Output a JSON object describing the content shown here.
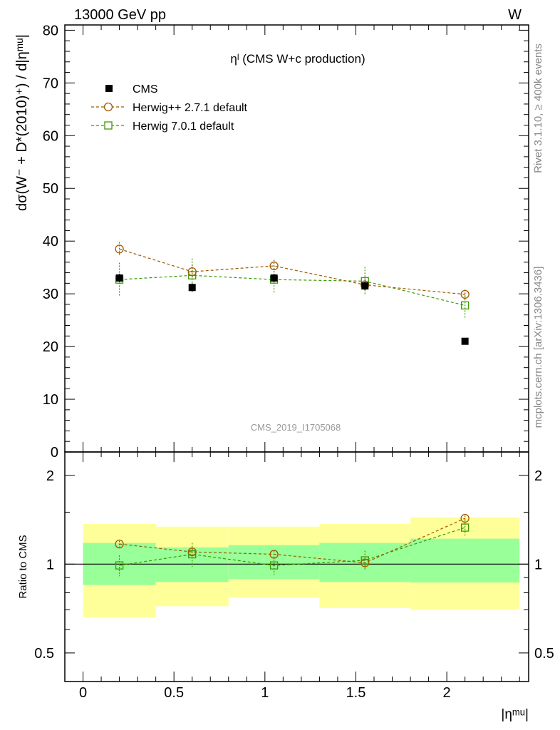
{
  "header": {
    "energy_label": "13000 GeV pp",
    "process_label": "W"
  },
  "side": {
    "rivet_label": "Rivet 3.1.10, ≥ 400k events",
    "mcplots_label": "mcplots.cern.ch [arXiv:1306.3436]"
  },
  "chart_data": [
    {
      "type": "scatter",
      "panel": "main",
      "title": "ηˡ (CMS W+c production)",
      "ylabel": "dσ(W⁻ + D*(2010)⁺) / d|ηᵐᵘ|",
      "watermark": "CMS_2019_I1705068",
      "xlim": [
        -0.1,
        2.45
      ],
      "ylim": [
        0,
        81
      ],
      "yticks": [
        0,
        10,
        20,
        30,
        40,
        50,
        60,
        70,
        80
      ],
      "grid": false,
      "legend_position": "top-left",
      "series": [
        {
          "name": "CMS",
          "color": "#000000",
          "marker": "filled-square",
          "x": [
            0.2,
            0.6,
            1.05,
            1.55,
            2.1
          ],
          "y": [
            33.0,
            31.2,
            33.0,
            31.5,
            21.0
          ],
          "err": [
            0.8,
            0.8,
            0.8,
            0.8,
            0.6
          ]
        },
        {
          "name": "Herwig++ 2.7.1 default",
          "color": "#a05a00",
          "marker": "open-circle",
          "dashed": true,
          "x": [
            0.2,
            0.6,
            1.05,
            1.55,
            2.1
          ],
          "y": [
            38.5,
            34.2,
            35.3,
            31.7,
            29.9
          ],
          "err": [
            1.3,
            1.3,
            1.2,
            1.0,
            0.9
          ]
        },
        {
          "name": "Herwig 7.0.1 default",
          "color": "#3a9a00",
          "marker": "open-square",
          "dashed": true,
          "x": [
            0.2,
            0.6,
            1.05,
            1.55,
            2.1
          ],
          "y": [
            32.7,
            33.5,
            32.7,
            32.4,
            27.8
          ],
          "err": [
            3.2,
            3.2,
            2.7,
            2.7,
            2.3
          ]
        }
      ]
    },
    {
      "type": "scatter",
      "panel": "ratio",
      "xlabel": "|ηᵐᵘ|",
      "ylabel": "Ratio to CMS",
      "xlim": [
        -0.1,
        2.45
      ],
      "xticks": [
        0,
        0.5,
        1,
        1.5,
        2
      ],
      "ylim": [
        0.4,
        2.4
      ],
      "log_y": true,
      "yticks": [
        0.5,
        1,
        2
      ],
      "reference_line": 1,
      "bands": {
        "edges": [
          0,
          0.4,
          0.8,
          1.3,
          1.8,
          2.4
        ],
        "stat_lo": [
          0.85,
          0.87,
          0.89,
          0.87,
          0.866
        ],
        "stat_hi": [
          1.18,
          1.14,
          1.16,
          1.18,
          1.22
        ],
        "total_lo": [
          0.66,
          0.72,
          0.77,
          0.71,
          0.7
        ],
        "total_hi": [
          1.37,
          1.34,
          1.34,
          1.37,
          1.44
        ]
      },
      "series": [
        {
          "name": "Herwig++ 2.7.1 default",
          "color": "#a05a00",
          "marker": "open-circle",
          "dashed": true,
          "x": [
            0.2,
            0.6,
            1.05,
            1.55,
            2.1
          ],
          "y": [
            1.17,
            1.1,
            1.08,
            1.01,
            1.43
          ],
          "err": [
            0.03,
            0.03,
            0.03,
            0.03,
            0.03
          ]
        },
        {
          "name": "Herwig 7.0.1 default",
          "color": "#3a9a00",
          "marker": "open-square",
          "dashed": true,
          "x": [
            0.2,
            0.6,
            1.05,
            1.55,
            2.1
          ],
          "y": [
            0.99,
            1.08,
            0.99,
            1.03,
            1.33
          ],
          "err": [
            0.08,
            0.1,
            0.07,
            0.08,
            0.08
          ]
        }
      ]
    }
  ]
}
